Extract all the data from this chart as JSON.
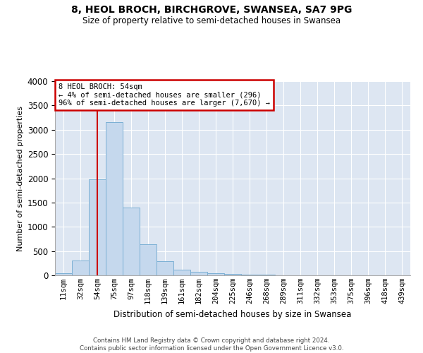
{
  "title": "8, HEOL BROCH, BIRCHGROVE, SWANSEA, SA7 9PG",
  "subtitle": "Size of property relative to semi-detached houses in Swansea",
  "xlabel": "Distribution of semi-detached houses by size in Swansea",
  "ylabel": "Number of semi-detached properties",
  "bar_color": "#c5d8ed",
  "bar_edge_color": "#7aafd4",
  "vline_color": "#cc0000",
  "vline_x_index": 2,
  "annotation_text": "8 HEOL BROCH: 54sqm\n← 4% of semi-detached houses are smaller (296)\n96% of semi-detached houses are larger (7,670) →",
  "annotation_box_edgecolor": "#cc0000",
  "categories": [
    "11sqm",
    "32sqm",
    "54sqm",
    "75sqm",
    "97sqm",
    "118sqm",
    "139sqm",
    "161sqm",
    "182sqm",
    "204sqm",
    "225sqm",
    "246sqm",
    "268sqm",
    "289sqm",
    "311sqm",
    "332sqm",
    "353sqm",
    "375sqm",
    "396sqm",
    "418sqm",
    "439sqm"
  ],
  "values": [
    50,
    310,
    1980,
    3160,
    1390,
    640,
    295,
    110,
    70,
    50,
    30,
    20,
    10,
    5,
    3,
    2,
    1,
    1,
    1,
    1,
    1
  ],
  "ylim": [
    0,
    4000
  ],
  "yticks": [
    0,
    500,
    1000,
    1500,
    2000,
    2500,
    3000,
    3500,
    4000
  ],
  "ax_facecolor": "#dde6f2",
  "footer_line1": "Contains HM Land Registry data © Crown copyright and database right 2024.",
  "footer_line2": "Contains public sector information licensed under the Open Government Licence v3.0."
}
